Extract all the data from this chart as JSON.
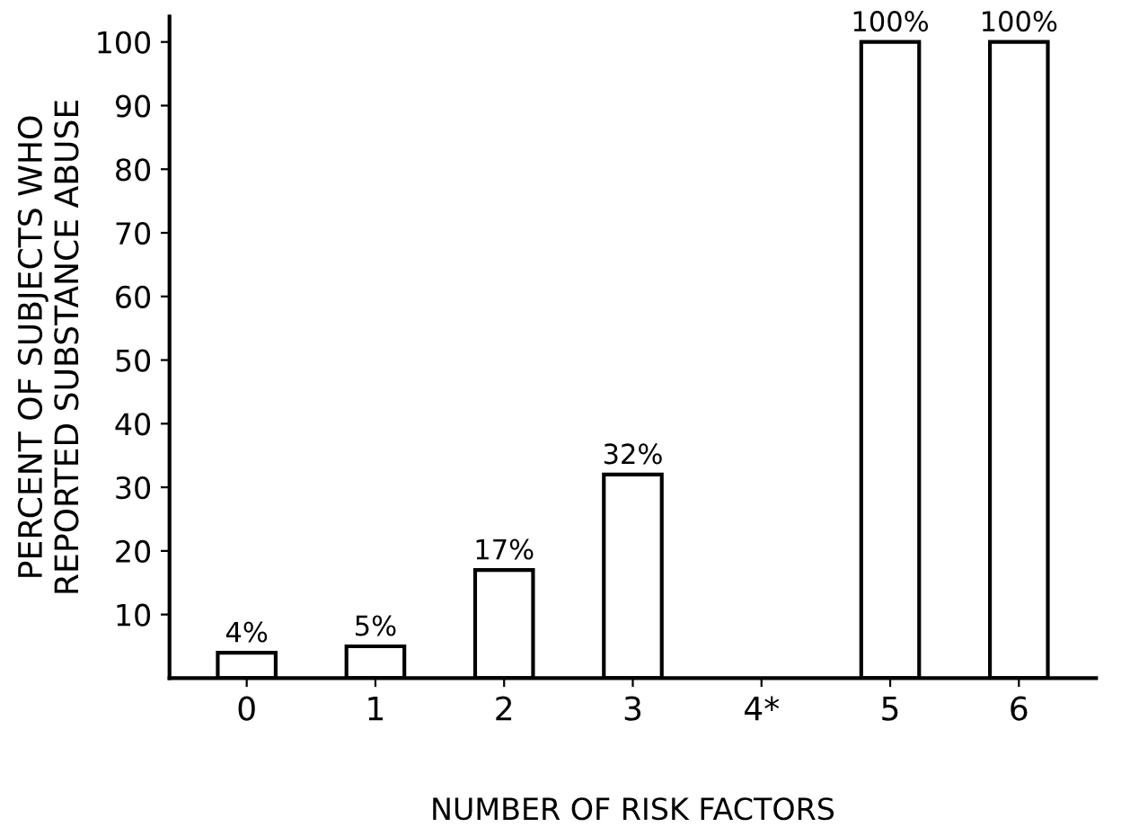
{
  "chart_data": {
    "type": "bar",
    "xlabel": "NUMBER OF RISK FACTORS",
    "ylabel": "PERCENT OF SUBJECTS WHO\nREPORTED SUBSTANCE ABUSE",
    "categories": [
      "0",
      "1",
      "2",
      "3",
      "4*",
      "5",
      "6"
    ],
    "values": [
      4,
      5,
      17,
      32,
      null,
      100,
      100
    ],
    "value_labels": [
      "4%",
      "5%",
      "17%",
      "32%",
      null,
      "100%",
      "100%"
    ],
    "color": "#ffffff",
    "ylim": [
      0,
      104
    ],
    "yticks": [
      10,
      20,
      30,
      40,
      50,
      60,
      70,
      80,
      90,
      100
    ],
    "grid": false,
    "legend": false
  }
}
